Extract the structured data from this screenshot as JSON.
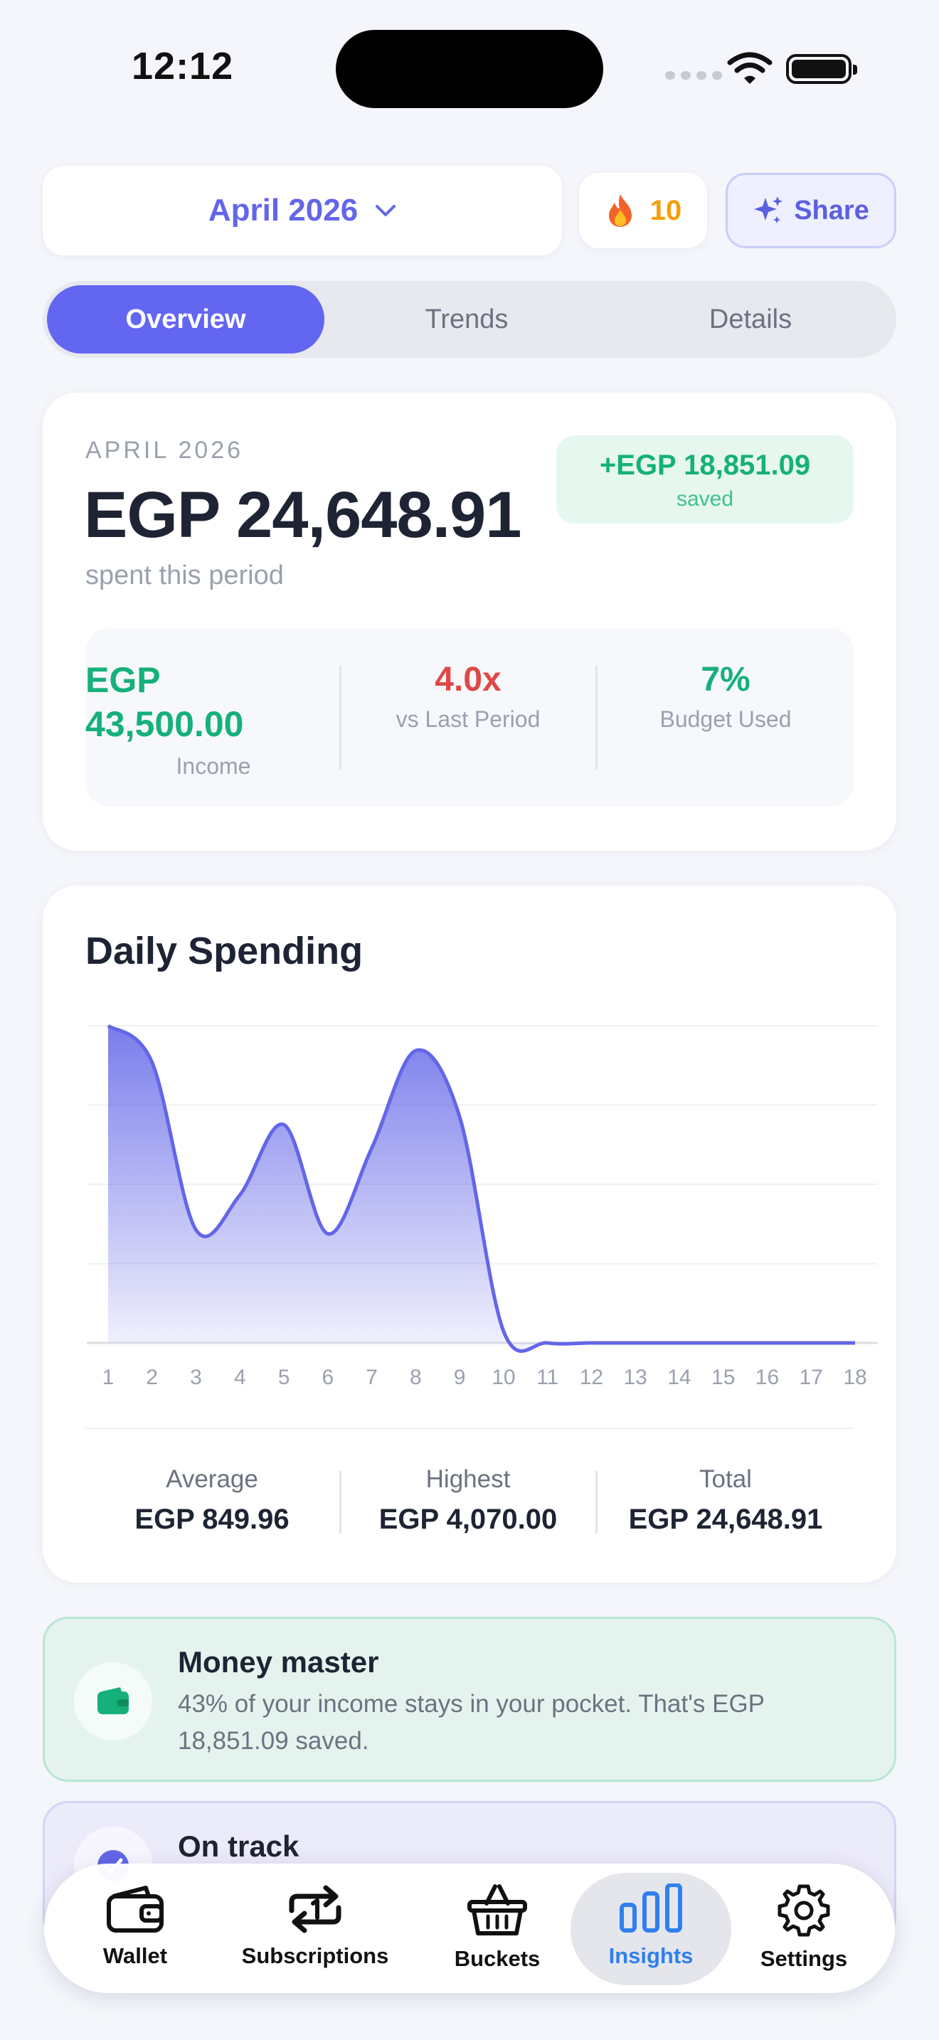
{
  "status": {
    "time": "12:12"
  },
  "header": {
    "month": "April 2026",
    "streak": "10",
    "share_label": "Share"
  },
  "tabs": [
    "Overview",
    "Trends",
    "Details"
  ],
  "summary": {
    "period": "APRIL 2026",
    "spent": "EGP 24,648.91",
    "spent_caption": "spent this period",
    "saved_amount": "+EGP 18,851.09",
    "saved_label": "saved",
    "income_currency": "EGP",
    "income_value": "43,500.00",
    "income_label": "Income",
    "vs_value": "4.0x",
    "vs_label": "vs Last Period",
    "budget_value": "7%",
    "budget_label": "Budget Used"
  },
  "daily": {
    "title": "Daily Spending",
    "average_label": "Average",
    "average_value": "EGP 849.96",
    "highest_label": "Highest",
    "highest_value": "EGP 4,070.00",
    "total_label": "Total",
    "total_value": "EGP 24,648.91"
  },
  "chart_data": {
    "type": "area",
    "title": "Daily Spending",
    "x": [
      "1",
      "2",
      "3",
      "4",
      "5",
      "6",
      "7",
      "8",
      "9",
      "10",
      "11",
      "12",
      "13",
      "14",
      "15",
      "16",
      "17",
      "18"
    ],
    "values": [
      4070,
      3600,
      1450,
      1900,
      2800,
      1400,
      2500,
      3750,
      2900,
      150,
      0,
      0,
      0,
      0,
      0,
      0,
      0,
      0
    ],
    "ylim": [
      0,
      4070
    ],
    "grid": true,
    "color": "#6366e8"
  },
  "insights": [
    {
      "title": "Money master",
      "text": "43% of your income stays in your pocket. That's EGP 18,851.09 saved.",
      "icon": "wallet-icon"
    },
    {
      "title": "On track",
      "icon": "check-icon"
    }
  ],
  "tabbar": [
    {
      "label": "Wallet",
      "icon": "wallet-icon"
    },
    {
      "label": "Subscriptions",
      "icon": "repeat-icon"
    },
    {
      "label": "Buckets",
      "icon": "basket-icon"
    },
    {
      "label": "Insights",
      "icon": "bar-chart-icon",
      "active": true
    },
    {
      "label": "Settings",
      "icon": "gear-icon"
    }
  ],
  "colors": {
    "accent": "#6366f1",
    "positive": "#16b07a",
    "negative": "#e04848",
    "active_tab": "#2f80ed"
  }
}
